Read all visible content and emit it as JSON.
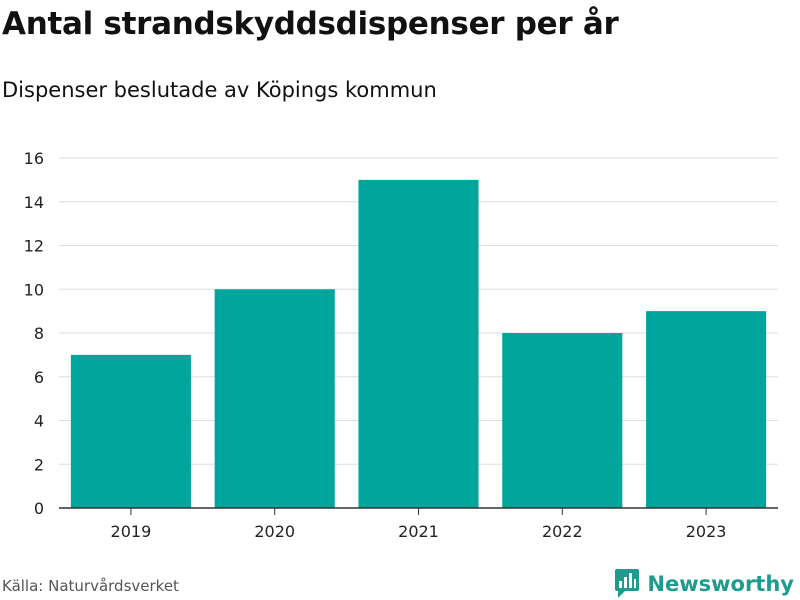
{
  "title": "Antal strandskyddsdispenser per år",
  "subtitle": "Dispenser beslutade av Köpings kommun",
  "source": "Källa: Naturvårdsverket",
  "brand": {
    "name": "Newsworthy",
    "icon": "newsworthy-logo-icon",
    "color": "#1d9b8e"
  },
  "chart_data": {
    "type": "bar",
    "categories": [
      "2019",
      "2020",
      "2021",
      "2022",
      "2023"
    ],
    "values": [
      7,
      10,
      15,
      8,
      9
    ],
    "ylim": [
      0,
      16
    ],
    "yticks": [
      0,
      2,
      4,
      6,
      8,
      10,
      12,
      14,
      16
    ],
    "grid": true,
    "bar_color": "#00a69c",
    "grid_color": "#dddddd",
    "axis_color": "#333333"
  }
}
